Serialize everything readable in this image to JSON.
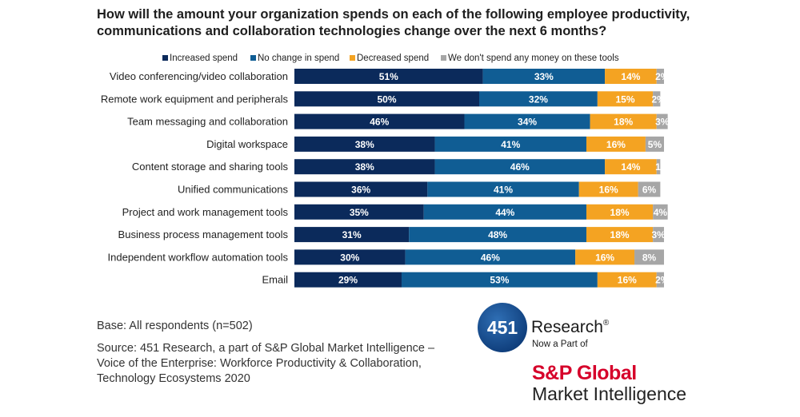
{
  "title_lines": [
    "How will the amount your organization spends on each of the following employee productivity,",
    "communications and collaboration technologies change over the next 6 months?"
  ],
  "chart_data": {
    "type": "bar",
    "orientation": "horizontal",
    "stacked": true,
    "xlim": [
      0,
      100
    ],
    "legend_position": "top",
    "categories": [
      "Video conferencing/video collaboration",
      "Remote work equipment and peripherals",
      "Team messaging and collaboration",
      "Digital workspace",
      "Content storage and sharing tools",
      "Unified communications",
      "Project and work management tools",
      "Business process management tools",
      "Independent workflow automation tools",
      "Email"
    ],
    "series": [
      {
        "name": "Increased spend",
        "color": "#0b2a5b",
        "label_color": "#ffffff",
        "values": [
          51,
          50,
          46,
          38,
          38,
          36,
          35,
          31,
          30,
          29
        ]
      },
      {
        "name": "No change in spend",
        "color": "#105d94",
        "label_color": "#ffffff",
        "values": [
          33,
          32,
          34,
          41,
          46,
          41,
          44,
          48,
          46,
          53
        ]
      },
      {
        "name": "Decreased spend",
        "color": "#f4a322",
        "label_color": "#ffffff",
        "values": [
          14,
          15,
          18,
          16,
          14,
          16,
          18,
          18,
          16,
          16
        ]
      },
      {
        "name": "We don't spend any money on these tools",
        "color": "#a6a6a6",
        "label_color": "#ffffff",
        "values": [
          2,
          2,
          3,
          5,
          1,
          6,
          4,
          3,
          8,
          2
        ]
      }
    ],
    "value_suffix": "%"
  },
  "notes": {
    "base": "Base: All respondents (n=502)",
    "source": "Source: 451 Research, a part of S&P Global Market Intelligence – Voice of the Enterprise: Workforce Productivity & Collaboration, Technology Ecosystems 2020"
  },
  "logo": {
    "number": "451",
    "name": "Research",
    "registered_mark": "®",
    "tagline": "Now a Part of",
    "company": "S&P Global",
    "division": "Market Intelligence"
  }
}
